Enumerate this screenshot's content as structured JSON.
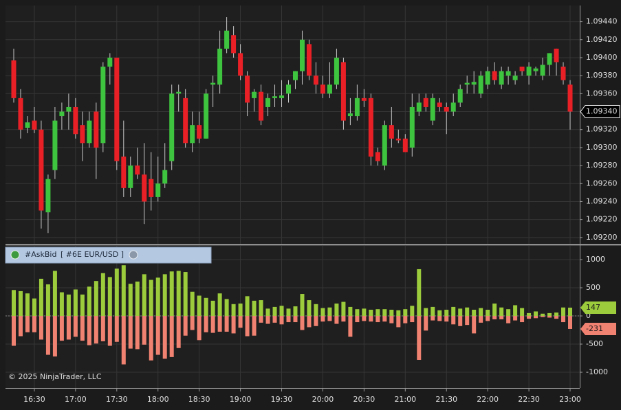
{
  "chart_data": [
    {
      "type": "candlestick",
      "x": [
        "16:15",
        "16:20",
        "16:25",
        "16:30",
        "16:35",
        "16:40",
        "16:45",
        "16:50",
        "16:55",
        "17:00",
        "17:05",
        "17:10",
        "17:15",
        "17:20",
        "17:25",
        "17:30",
        "17:35",
        "17:40",
        "17:45",
        "17:50",
        "17:55",
        "18:00",
        "18:05",
        "18:10",
        "18:15",
        "18:20",
        "18:25",
        "18:30",
        "18:35",
        "18:40",
        "18:45",
        "18:50",
        "18:55",
        "19:00",
        "19:05",
        "19:10",
        "19:15",
        "19:20",
        "19:25",
        "19:30",
        "19:35",
        "19:40",
        "19:45",
        "19:50",
        "19:55",
        "20:00",
        "20:05",
        "20:10",
        "20:15",
        "20:20",
        "20:25",
        "20:30",
        "20:35",
        "20:40",
        "20:45",
        "20:50",
        "20:55",
        "21:00",
        "21:05",
        "21:10",
        "21:15",
        "21:20",
        "21:25",
        "21:30",
        "21:35",
        "21:40",
        "21:45",
        "21:50",
        "21:55",
        "22:00",
        "22:05",
        "22:10",
        "22:15",
        "22:20",
        "22:25",
        "22:30",
        "22:35",
        "22:40",
        "22:45",
        "22:50",
        "22:55",
        "23:00"
      ],
      "open": [
        1.09397,
        1.09355,
        1.09322,
        1.0933,
        1.0932,
        1.09228,
        1.09275,
        1.09335,
        1.0934,
        1.09345,
        1.09325,
        1.09305,
        1.0934,
        1.09305,
        1.0939,
        1.094,
        1.0929,
        1.09255,
        1.0928,
        1.0927,
        1.09265,
        1.09245,
        1.0926,
        1.09285,
        1.0936,
        1.09355,
        1.09305,
        1.09325,
        1.0931,
        1.0937,
        1.0937,
        1.0941,
        1.09425,
        1.09405,
        1.0938,
        1.09355,
        1.09362,
        1.09345,
        1.09355,
        1.09355,
        1.0936,
        1.09375,
        1.09385,
        1.09415,
        1.0938,
        1.0937,
        1.0936,
        1.0937,
        1.09395,
        1.09335,
        1.09335,
        1.09355,
        1.09355,
        1.09295,
        1.0928,
        1.09325,
        1.0931,
        1.0931,
        1.093,
        1.0934,
        1.09355,
        1.0933,
        1.0935,
        1.09345,
        1.0934,
        1.0935,
        1.0937,
        1.0937,
        1.0936,
        1.0937,
        1.09385,
        1.0937,
        1.0938,
        1.09375,
        1.0939,
        1.0938,
        1.09385,
        1.0938,
        1.09392,
        1.0941,
        1.0939,
        1.0937
      ],
      "high": [
        1.0941,
        1.09365,
        1.09335,
        1.09345,
        1.0933,
        1.0927,
        1.09345,
        1.0935,
        1.0936,
        1.09355,
        1.0934,
        1.0934,
        1.0935,
        1.09395,
        1.09405,
        1.094,
        1.0933,
        1.0929,
        1.093,
        1.09305,
        1.09295,
        1.0929,
        1.09305,
        1.0937,
        1.0937,
        1.09365,
        1.0934,
        1.0934,
        1.09365,
        1.0938,
        1.0943,
        1.09445,
        1.09435,
        1.09415,
        1.09385,
        1.09365,
        1.0937,
        1.0936,
        1.0937,
        1.09375,
        1.09375,
        1.09385,
        1.0943,
        1.0942,
        1.09395,
        1.0938,
        1.09395,
        1.0941,
        1.094,
        1.09355,
        1.0937,
        1.09365,
        1.0936,
        1.093,
        1.0933,
        1.09345,
        1.0932,
        1.09315,
        1.0936,
        1.0936,
        1.0936,
        1.0936,
        1.09355,
        1.0935,
        1.0936,
        1.0937,
        1.0938,
        1.09385,
        1.09385,
        1.0939,
        1.09395,
        1.0939,
        1.0939,
        1.09385,
        1.0939,
        1.09395,
        1.0939,
        1.094,
        1.09405,
        1.0941,
        1.09395,
        1.09375
      ],
      "low": [
        1.0935,
        1.0931,
        1.09316,
        1.09316,
        1.0921,
        1.09205,
        1.09265,
        1.0932,
        1.0932,
        1.0931,
        1.09285,
        1.093,
        1.09265,
        1.09295,
        1.0937,
        1.09275,
        1.09245,
        1.09245,
        1.09265,
        1.09215,
        1.0923,
        1.0924,
        1.09255,
        1.09275,
        1.0934,
        1.093,
        1.09295,
        1.09305,
        1.0931,
        1.09345,
        1.0936,
        1.09405,
        1.094,
        1.09375,
        1.09335,
        1.0934,
        1.09325,
        1.09335,
        1.09345,
        1.09345,
        1.0935,
        1.09365,
        1.0937,
        1.09375,
        1.0936,
        1.09355,
        1.09355,
        1.09365,
        1.0932,
        1.09325,
        1.0933,
        1.09345,
        1.0928,
        1.0928,
        1.09275,
        1.093,
        1.09305,
        1.09295,
        1.0929,
        1.09335,
        1.0934,
        1.09325,
        1.0934,
        1.09315,
        1.09335,
        1.09345,
        1.0936,
        1.0936,
        1.09355,
        1.09365,
        1.0937,
        1.09365,
        1.0937,
        1.0937,
        1.0938,
        1.0937,
        1.0938,
        1.09375,
        1.0938,
        1.0938,
        1.0937,
        1.0932
      ],
      "close": [
        1.09355,
        1.0932,
        1.09328,
        1.0932,
        1.0923,
        1.09265,
        1.0933,
        1.0934,
        1.09345,
        1.09315,
        1.09305,
        1.0933,
        1.093,
        1.0939,
        1.094,
        1.09285,
        1.09255,
        1.0928,
        1.0927,
        1.0924,
        1.09245,
        1.0926,
        1.09275,
        1.0936,
        1.09362,
        1.09305,
        1.09325,
        1.0931,
        1.0936,
        1.09372,
        1.0941,
        1.0943,
        1.09405,
        1.0938,
        1.0935,
        1.09362,
        1.0933,
        1.09355,
        1.09357,
        1.09358,
        1.0937,
        1.09385,
        1.0942,
        1.0938,
        1.0937,
        1.0936,
        1.0937,
        1.094,
        1.0933,
        1.09338,
        1.09355,
        1.09352,
        1.0929,
        1.09285,
        1.09325,
        1.0931,
        1.09308,
        1.09295,
        1.09345,
        1.0935,
        1.09345,
        1.09355,
        1.09345,
        1.0934,
        1.0935,
        1.09365,
        1.09372,
        1.09373,
        1.0938,
        1.09385,
        1.09375,
        1.09385,
        1.09385,
        1.0938,
        1.09385,
        1.0939,
        1.09388,
        1.09392,
        1.09405,
        1.09395,
        1.09375,
        1.0934
      ],
      "last_label": "1.09340",
      "up_color": "#3ec43e",
      "down_color": "#ea2027",
      "wick_color": "#c8c8c8",
      "xlim": [
        "16:09",
        "23:07"
      ],
      "xticks": [
        "16:30",
        "17:00",
        "17:30",
        "18:00",
        "18:30",
        "19:00",
        "19:30",
        "20:00",
        "20:30",
        "21:00",
        "21:30",
        "22:00",
        "22:30",
        "23:00"
      ],
      "ylim": [
        1.09193,
        1.09458
      ],
      "yticks": [
        {
          "value": 1.092,
          "label": "1.09200"
        },
        {
          "value": 1.0922,
          "label": "1.09220"
        },
        {
          "value": 1.0924,
          "label": "1.09240"
        },
        {
          "value": 1.0926,
          "label": "1.09260"
        },
        {
          "value": 1.0928,
          "label": "1.09280"
        },
        {
          "value": 1.093,
          "label": "1.09300"
        },
        {
          "value": 1.0932,
          "label": "1.09320"
        },
        {
          "value": 1.0934,
          "label": "1.09340"
        },
        {
          "value": 1.0936,
          "label": "1.09360"
        },
        {
          "value": 1.0938,
          "label": "1.09380"
        },
        {
          "value": 1.094,
          "label": "1.09400"
        },
        {
          "value": 1.0942,
          "label": "1.09420"
        },
        {
          "value": 1.0944,
          "label": "1.09440"
        }
      ],
      "grid": true
    },
    {
      "type": "bar",
      "title": "#AskBid",
      "subtitle": "[ #6E EUR/USD ]",
      "series": [
        {
          "color": "#9ccc3c",
          "values": [
            460,
            440,
            400,
            310,
            660,
            560,
            800,
            420,
            380,
            470,
            380,
            520,
            620,
            760,
            690,
            840,
            900,
            570,
            610,
            740,
            640,
            680,
            740,
            790,
            800,
            780,
            430,
            360,
            320,
            270,
            400,
            300,
            210,
            220,
            350,
            270,
            280,
            130,
            160,
            180,
            130,
            170,
            390,
            280,
            210,
            140,
            150,
            220,
            250,
            160,
            120,
            130,
            110,
            120,
            120,
            110,
            100,
            120,
            180,
            830,
            140,
            160,
            100,
            110,
            160,
            130,
            150,
            110,
            140,
            110,
            220,
            150,
            120,
            190,
            140,
            50,
            80,
            40,
            50,
            60,
            150,
            147
          ]
        },
        {
          "color": "#f08272",
          "values": [
            -530,
            -360,
            -290,
            -290,
            -420,
            -690,
            -720,
            -440,
            -420,
            -370,
            -440,
            -520,
            -490,
            -450,
            -530,
            -460,
            -860,
            -580,
            -590,
            -510,
            -790,
            -690,
            -760,
            -730,
            -570,
            -350,
            -250,
            -430,
            -290,
            -300,
            -280,
            -280,
            -310,
            -210,
            -360,
            -350,
            -120,
            -140,
            -120,
            -150,
            -110,
            -110,
            -250,
            -200,
            -180,
            -100,
            -90,
            -140,
            -100,
            -370,
            -110,
            -90,
            -100,
            -110,
            -100,
            -130,
            -200,
            -130,
            -110,
            -780,
            -260,
            -80,
            -90,
            -100,
            -150,
            -180,
            -160,
            -310,
            -120,
            -90,
            -60,
            -60,
            -130,
            -80,
            -110,
            -50,
            -40,
            -20,
            -30,
            -50,
            -110,
            -231
          ]
        }
      ],
      "ylim": [
        -1280,
        1244
      ],
      "yticks": [
        -1000,
        -500,
        0,
        500,
        1000
      ],
      "grid": true
    }
  ],
  "footer": "© 2025 NinjaTrader, LLC"
}
